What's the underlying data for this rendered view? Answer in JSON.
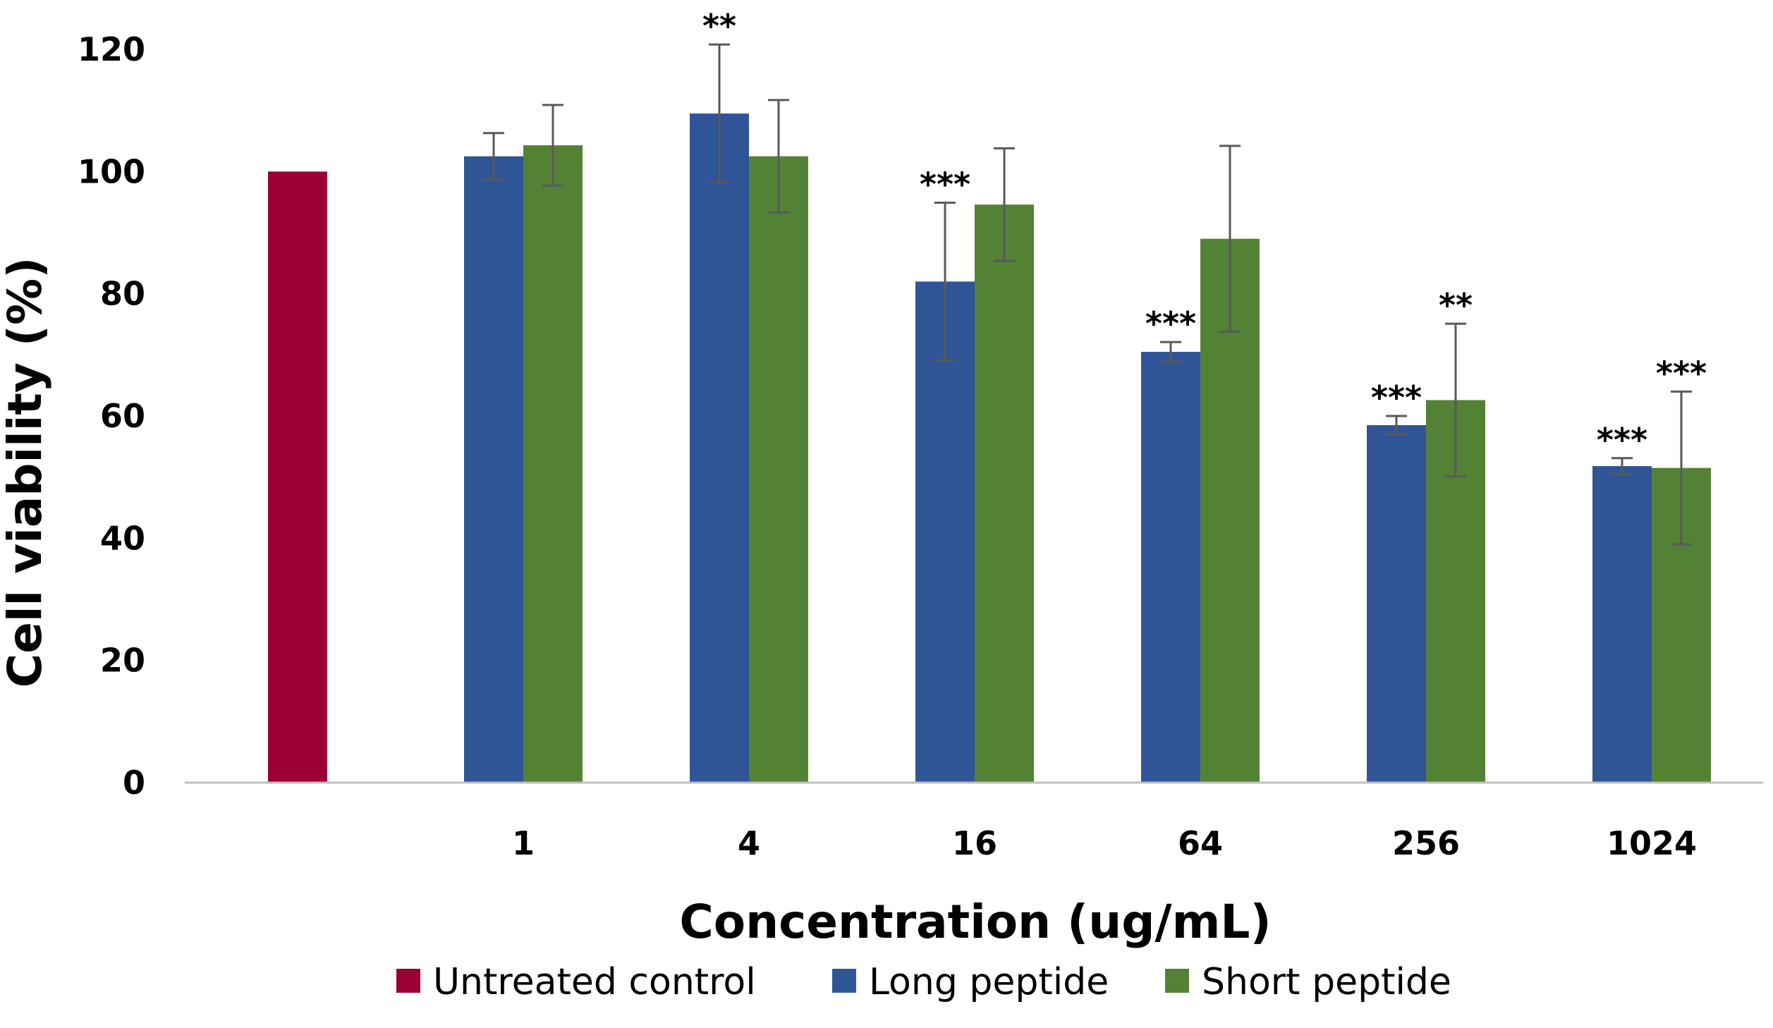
{
  "chart_data": {
    "type": "bar",
    "title": "",
    "xlabel": "Concentration (ug/mL)",
    "ylabel": "Cell viability (%)",
    "ylim": [
      0,
      120
    ],
    "yticks": [
      "0",
      "20",
      "40",
      "60",
      "80",
      "100",
      "120"
    ],
    "categories": [
      "",
      "1",
      "4",
      "16",
      "64",
      "256",
      "1024"
    ],
    "grid": false,
    "legend_position": "bottom",
    "series": [
      {
        "name": "Untreated control",
        "color": "#9b0032",
        "values": [
          100,
          null,
          null,
          null,
          null,
          null,
          null
        ],
        "errors": [
          null,
          null,
          null,
          null,
          null,
          null,
          null
        ],
        "significance": [
          "",
          "",
          "",
          "",
          "",
          "",
          ""
        ]
      },
      {
        "name": "Long peptide",
        "color": "#2f5597",
        "values": [
          null,
          102.5,
          109.5,
          82,
          70.5,
          58.5,
          51.8
        ],
        "errors": [
          null,
          3.8,
          11.3,
          12.9,
          1.6,
          1.5,
          1.3
        ],
        "significance": [
          "",
          "",
          "**",
          "***",
          "***",
          "***",
          "***"
        ]
      },
      {
        "name": "Short peptide",
        "color": "#548235",
        "values": [
          null,
          104.3,
          102.5,
          94.6,
          89,
          62.6,
          51.5
        ],
        "errors": [
          null,
          6.6,
          9.2,
          9.2,
          15.2,
          12.5,
          12.5
        ],
        "significance": [
          "",
          "",
          "",
          "",
          "",
          "**",
          "***"
        ]
      }
    ]
  }
}
